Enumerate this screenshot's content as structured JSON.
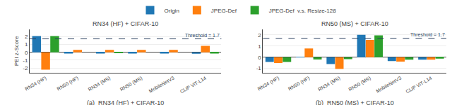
{
  "chart_data": [
    {
      "type": "bar",
      "title": "RN34 (HF) + CIFAR-10",
      "categories": [
        "RN34 (HF)",
        "RN50 (HF)",
        "RN34 (MS)",
        "RN50 (MS)",
        "MobileNetV3",
        "CLIP ViT-L14"
      ],
      "series": [
        {
          "name": "Origin",
          "values": [
            2.05,
            -0.15,
            -0.15,
            -0.15,
            -0.15,
            -0.18
          ]
        },
        {
          "name": "JPEG-Def",
          "values": [
            -2.2,
            0.3,
            0.3,
            0.3,
            0.3,
            0.82
          ]
        },
        {
          "name": "JPEG-Def  v.s. Resize-128",
          "values": [
            2.05,
            0.0,
            -0.12,
            0.0,
            0.0,
            -0.15
          ]
        }
      ],
      "ylabel": "PEI z-Score",
      "ylim": [
        -2.6,
        2.9
      ],
      "yticks": [
        -2,
        -1,
        0,
        1,
        2
      ],
      "grid": true,
      "threshold": {
        "value": 1.7,
        "label": "Threshold = 1.7"
      },
      "annotations": [
        {
          "text": "(a)  RN34 (HF) + CIFAR-10"
        }
      ]
    },
    {
      "type": "bar",
      "title": "RN50 (MS) + CIFAR-10",
      "categories": [
        "RN34 (HF)",
        "RN50 (HF)",
        "RN34 (MS)",
        "RN50 (MS)",
        "MobileNetV3",
        "CLIP ViT-L14"
      ],
      "series": [
        {
          "name": "Origin",
          "values": [
            -0.42,
            0.03,
            -0.62,
            2.02,
            -0.35,
            -0.22
          ]
        },
        {
          "name": "JPEG-Def",
          "values": [
            -0.52,
            0.78,
            -1.05,
            1.55,
            -0.4,
            -0.22
          ]
        },
        {
          "name": "JPEG-Def  v.s. Resize-128",
          "values": [
            -0.42,
            -0.2,
            -0.18,
            1.97,
            -0.22,
            -0.12
          ]
        }
      ],
      "ylim": [
        -1.4,
        2.5
      ],
      "yticks": [
        -1,
        0,
        1,
        2
      ],
      "grid": true,
      "threshold": {
        "value": 1.7,
        "label": "Threshold = 1.7"
      },
      "annotations": [
        {
          "text": "(b)  RN50 (MS) + CIFAR-10"
        }
      ]
    }
  ]
}
